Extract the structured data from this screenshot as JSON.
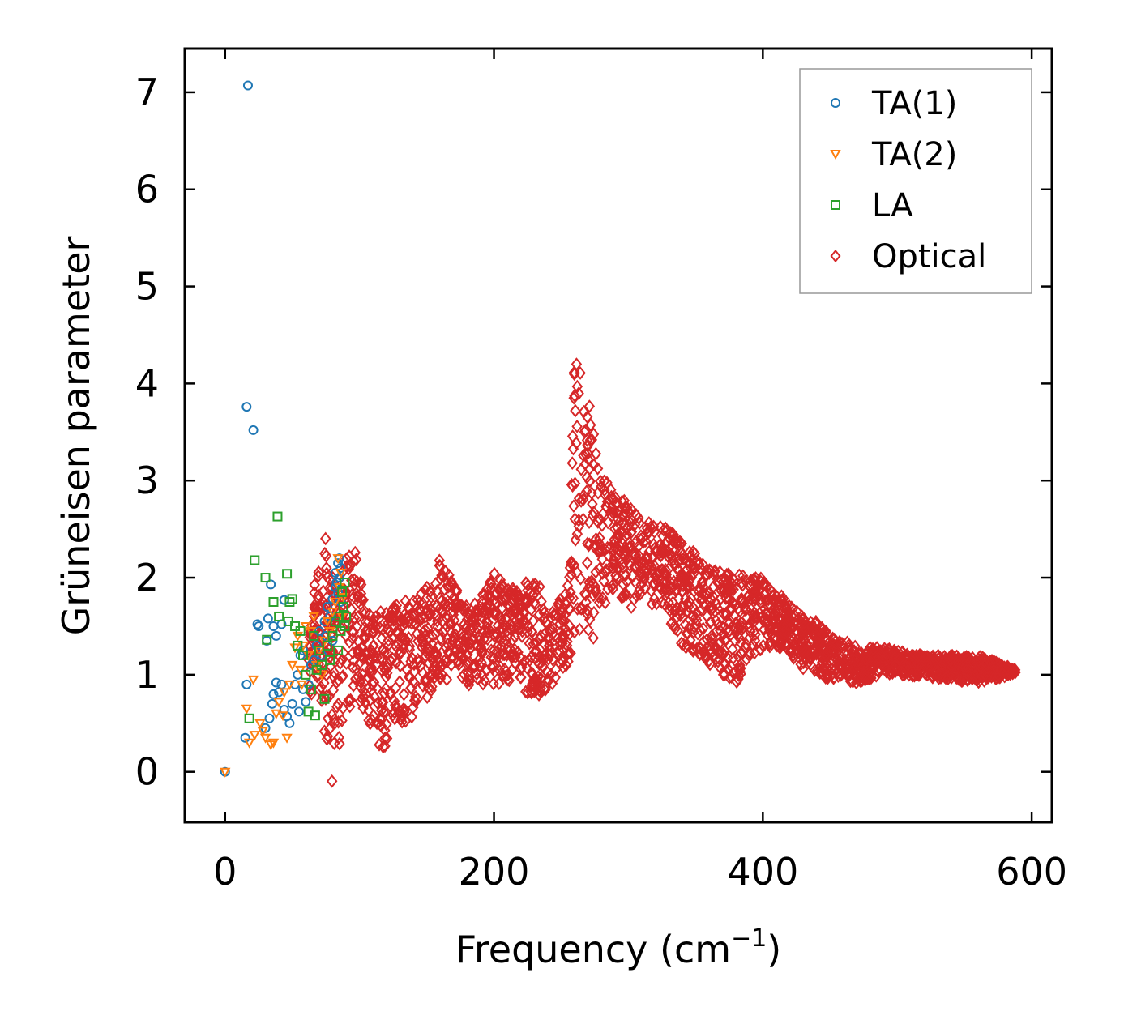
{
  "chart_data": {
    "type": "scatter",
    "title": "",
    "xlabel": "Frequency (cm",
    "xlabel_sup": "−1",
    "xlabel_end": ")",
    "ylabel": "Grüneisen parameter",
    "xlim": [
      -30,
      615
    ],
    "ylim": [
      -0.52,
      7.45
    ],
    "xticks": [
      0,
      200,
      400,
      600
    ],
    "yticks": [
      0,
      1,
      2,
      3,
      4,
      5,
      6,
      7
    ],
    "legend_position": "top-right",
    "series": [
      {
        "name": "TA(1)",
        "marker": "circle",
        "color": "#1f77b4",
        "points": [
          [
            0,
            0
          ],
          [
            15,
            0.35
          ],
          [
            16,
            0.9
          ],
          [
            17,
            7.07
          ],
          [
            16,
            3.76
          ],
          [
            21,
            3.52
          ],
          [
            24,
            1.52
          ],
          [
            25,
            1.5
          ],
          [
            31,
            1.35
          ],
          [
            32,
            1.58
          ],
          [
            34,
            1.93
          ],
          [
            36,
            1.5
          ],
          [
            38,
            1.4
          ],
          [
            42,
            1.52
          ],
          [
            44,
            1.77
          ],
          [
            30,
            0.45
          ],
          [
            33,
            0.55
          ],
          [
            35,
            0.7
          ],
          [
            36,
            0.8
          ],
          [
            38,
            0.92
          ],
          [
            40,
            0.82
          ],
          [
            42,
            0.9
          ],
          [
            44,
            0.64
          ],
          [
            46,
            0.57
          ],
          [
            48,
            0.5
          ],
          [
            50,
            0.7
          ],
          [
            52,
            0.9
          ],
          [
            54,
            1.0
          ],
          [
            55,
            0.62
          ],
          [
            56,
            1.2
          ],
          [
            58,
            1.25
          ],
          [
            58,
            0.85
          ],
          [
            60,
            0.72
          ],
          [
            62,
            0.9
          ],
          [
            64,
            1.1
          ],
          [
            66,
            1.15
          ],
          [
            68,
            1.3
          ],
          [
            70,
            1.45
          ],
          [
            72,
            1.2
          ],
          [
            74,
            1.55
          ],
          [
            75,
            1.4
          ],
          [
            76,
            1.7
          ],
          [
            78,
            1.6
          ],
          [
            80,
            1.78
          ],
          [
            80,
            1.35
          ],
          [
            82,
            1.9
          ],
          [
            82,
            2.05
          ],
          [
            83,
            1.95
          ],
          [
            84,
            2.15
          ],
          [
            84,
            1.85
          ],
          [
            85,
            2.0
          ],
          [
            85,
            2.2
          ],
          [
            86,
            1.75
          ],
          [
            86,
            2.1
          ]
        ]
      },
      {
        "name": "TA(2)",
        "marker": "triangle-down",
        "color": "#ff7f0e",
        "points": [
          [
            0,
            0
          ],
          [
            16,
            0.65
          ],
          [
            18,
            0.3
          ],
          [
            21,
            0.95
          ],
          [
            22,
            0.38
          ],
          [
            26,
            0.5
          ],
          [
            28,
            0.42
          ],
          [
            30,
            0.35
          ],
          [
            34,
            0.28
          ],
          [
            36,
            0.3
          ],
          [
            38,
            0.6
          ],
          [
            40,
            0.72
          ],
          [
            43,
            0.58
          ],
          [
            44,
            0.82
          ],
          [
            46,
            0.35
          ],
          [
            48,
            0.9
          ],
          [
            50,
            1.1
          ],
          [
            52,
            1.28
          ],
          [
            54,
            1.4
          ],
          [
            56,
            1.05
          ],
          [
            57,
            0.9
          ],
          [
            58,
            1.3
          ],
          [
            60,
            1.5
          ],
          [
            62,
            1.2
          ],
          [
            64,
            1.45
          ],
          [
            66,
            1.6
          ],
          [
            68,
            1.1
          ],
          [
            70,
            1.25
          ],
          [
            72,
            1.0
          ],
          [
            74,
            1.35
          ],
          [
            76,
            1.55
          ],
          [
            78,
            1.45
          ],
          [
            80,
            1.65
          ],
          [
            82,
            1.75
          ],
          [
            84,
            2.2
          ],
          [
            85,
            1.9
          ],
          [
            86,
            2.05
          ],
          [
            87,
            1.6
          ],
          [
            88,
            1.8
          ]
        ]
      },
      {
        "name": "LA",
        "marker": "square",
        "color": "#2ca02c",
        "points": [
          [
            18,
            0.55
          ],
          [
            22,
            2.18
          ],
          [
            30,
            2.0
          ],
          [
            31,
            1.36
          ],
          [
            36,
            1.75
          ],
          [
            39,
            2.63
          ],
          [
            40,
            1.6
          ],
          [
            46,
            2.04
          ],
          [
            47,
            1.55
          ],
          [
            48,
            1.75
          ],
          [
            50,
            1.78
          ],
          [
            52,
            1.5
          ],
          [
            54,
            1.3
          ],
          [
            56,
            1.45
          ],
          [
            58,
            1.2
          ],
          [
            60,
            1.0
          ],
          [
            62,
            0.62
          ],
          [
            64,
            0.85
          ],
          [
            66,
            1.4
          ],
          [
            67,
            0.58
          ],
          [
            68,
            1.05
          ],
          [
            70,
            1.25
          ],
          [
            72,
            1.1
          ],
          [
            74,
            0.75
          ],
          [
            76,
            1.3
          ],
          [
            78,
            1.15
          ],
          [
            80,
            1.4
          ],
          [
            82,
            1.55
          ],
          [
            84,
            1.25
          ],
          [
            85,
            1.6
          ],
          [
            86,
            1.45
          ],
          [
            87,
            1.85
          ],
          [
            88,
            1.7
          ],
          [
            89,
            1.5
          ],
          [
            89,
            1.95
          ],
          [
            90,
            1.6
          ]
        ]
      },
      {
        "name": "Optical",
        "marker": "diamond",
        "color": "#d62728",
        "points": []
      }
    ],
    "optical_envelope": {
      "description": "dense band of optical-mode points; frequency (cm-1) with lower/upper Grüneisen bounds",
      "frequency": [
        62,
        68,
        72,
        76,
        80,
        86,
        92,
        96,
        102,
        110,
        118,
        124,
        130,
        140,
        150,
        160,
        170,
        180,
        190,
        200,
        210,
        220,
        230,
        240,
        250,
        256,
        260,
        266,
        272,
        278,
        284,
        290,
        300,
        310,
        320,
        330,
        340,
        350,
        360,
        370,
        380,
        390,
        400,
        410,
        420,
        430,
        440,
        450,
        460,
        470,
        480,
        490,
        500,
        510,
        520,
        530,
        540,
        550,
        560,
        570,
        580,
        588
      ],
      "lower": [
        0.7,
        0.9,
        0.6,
        0.2,
        -0.15,
        0.2,
        0.6,
        0.9,
        0.6,
        0.3,
        0.25,
        0.3,
        0.4,
        0.55,
        0.75,
        0.9,
        0.95,
        0.9,
        0.85,
        0.9,
        0.9,
        0.85,
        0.75,
        0.85,
        1.0,
        1.1,
        1.25,
        1.3,
        1.35,
        1.4,
        1.7,
        1.9,
        1.6,
        1.8,
        1.7,
        1.55,
        1.3,
        1.2,
        1.1,
        1.0,
        0.9,
        1.2,
        1.25,
        1.3,
        1.2,
        1.05,
        1.0,
        0.95,
        0.95,
        0.9,
        0.95,
        1.0,
        1.0,
        0.98,
        0.98,
        0.96,
        0.94,
        0.93,
        0.92,
        0.95,
        0.98,
        1.02
      ],
      "upper": [
        1.6,
        2.1,
        2.72,
        2.3,
        2.0,
        2.0,
        2.3,
        2.35,
        1.9,
        1.6,
        1.7,
        1.8,
        1.7,
        1.85,
        1.9,
        2.2,
        1.95,
        1.7,
        1.8,
        2.05,
        1.9,
        1.9,
        2.15,
        1.6,
        1.8,
        2.0,
        4.45,
        4.1,
        3.7,
        3.2,
        3.0,
        2.9,
        2.75,
        2.65,
        2.55,
        2.5,
        2.35,
        2.25,
        2.1,
        2.08,
        2.05,
        2.0,
        2.0,
        1.85,
        1.75,
        1.6,
        1.55,
        1.4,
        1.35,
        1.3,
        1.28,
        1.28,
        1.25,
        1.22,
        1.2,
        1.2,
        1.2,
        1.2,
        1.2,
        1.15,
        1.1,
        1.05
      ]
    }
  }
}
